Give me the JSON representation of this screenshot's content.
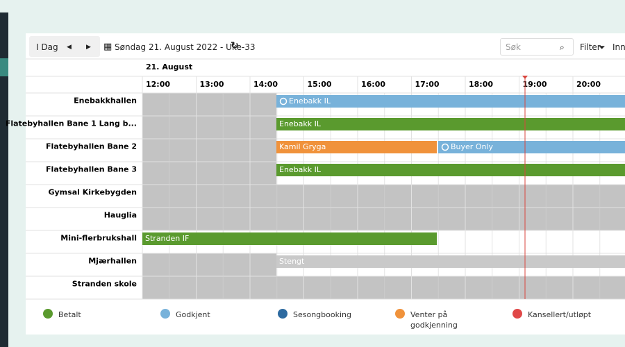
{
  "toolbar": {
    "today_button": "I Dag",
    "date_label": "Søndag 21. August 2022 - Uke-33",
    "search_placeholder": "Søk",
    "filter_label": "Filter",
    "settings_label": "Inns"
  },
  "date_header": "21. August",
  "hours": [
    "12:00",
    "13:00",
    "14:00",
    "15:00",
    "16:00",
    "17:00",
    "18:00",
    "19:00",
    "20:00"
  ],
  "resources": [
    "Enebakkhallen",
    "Flatebyhallen Bane 1 Lang b...",
    "Flatebyhallen Bane 2",
    "Flatebyhallen Bane 3",
    "Gymsal Kirkebygden",
    "Hauglia",
    "Mini-flerbrukshall",
    "Mjærhallen",
    "Stranden skole"
  ],
  "bookings": [
    {
      "label": "Enebakk IL"
    },
    {
      "label": "Enebakk IL"
    },
    {
      "label": "Kamil Gryga"
    },
    {
      "label": "Buyer Only"
    },
    {
      "label": "Enebakk IL"
    },
    {
      "label": "Stranden IF"
    },
    {
      "label": "Stengt"
    }
  ],
  "legend": [
    "Betalt",
    "Godkjent",
    "Sesongbooking",
    "Venter på godkjenning",
    "Kansellert/utløpt"
  ]
}
